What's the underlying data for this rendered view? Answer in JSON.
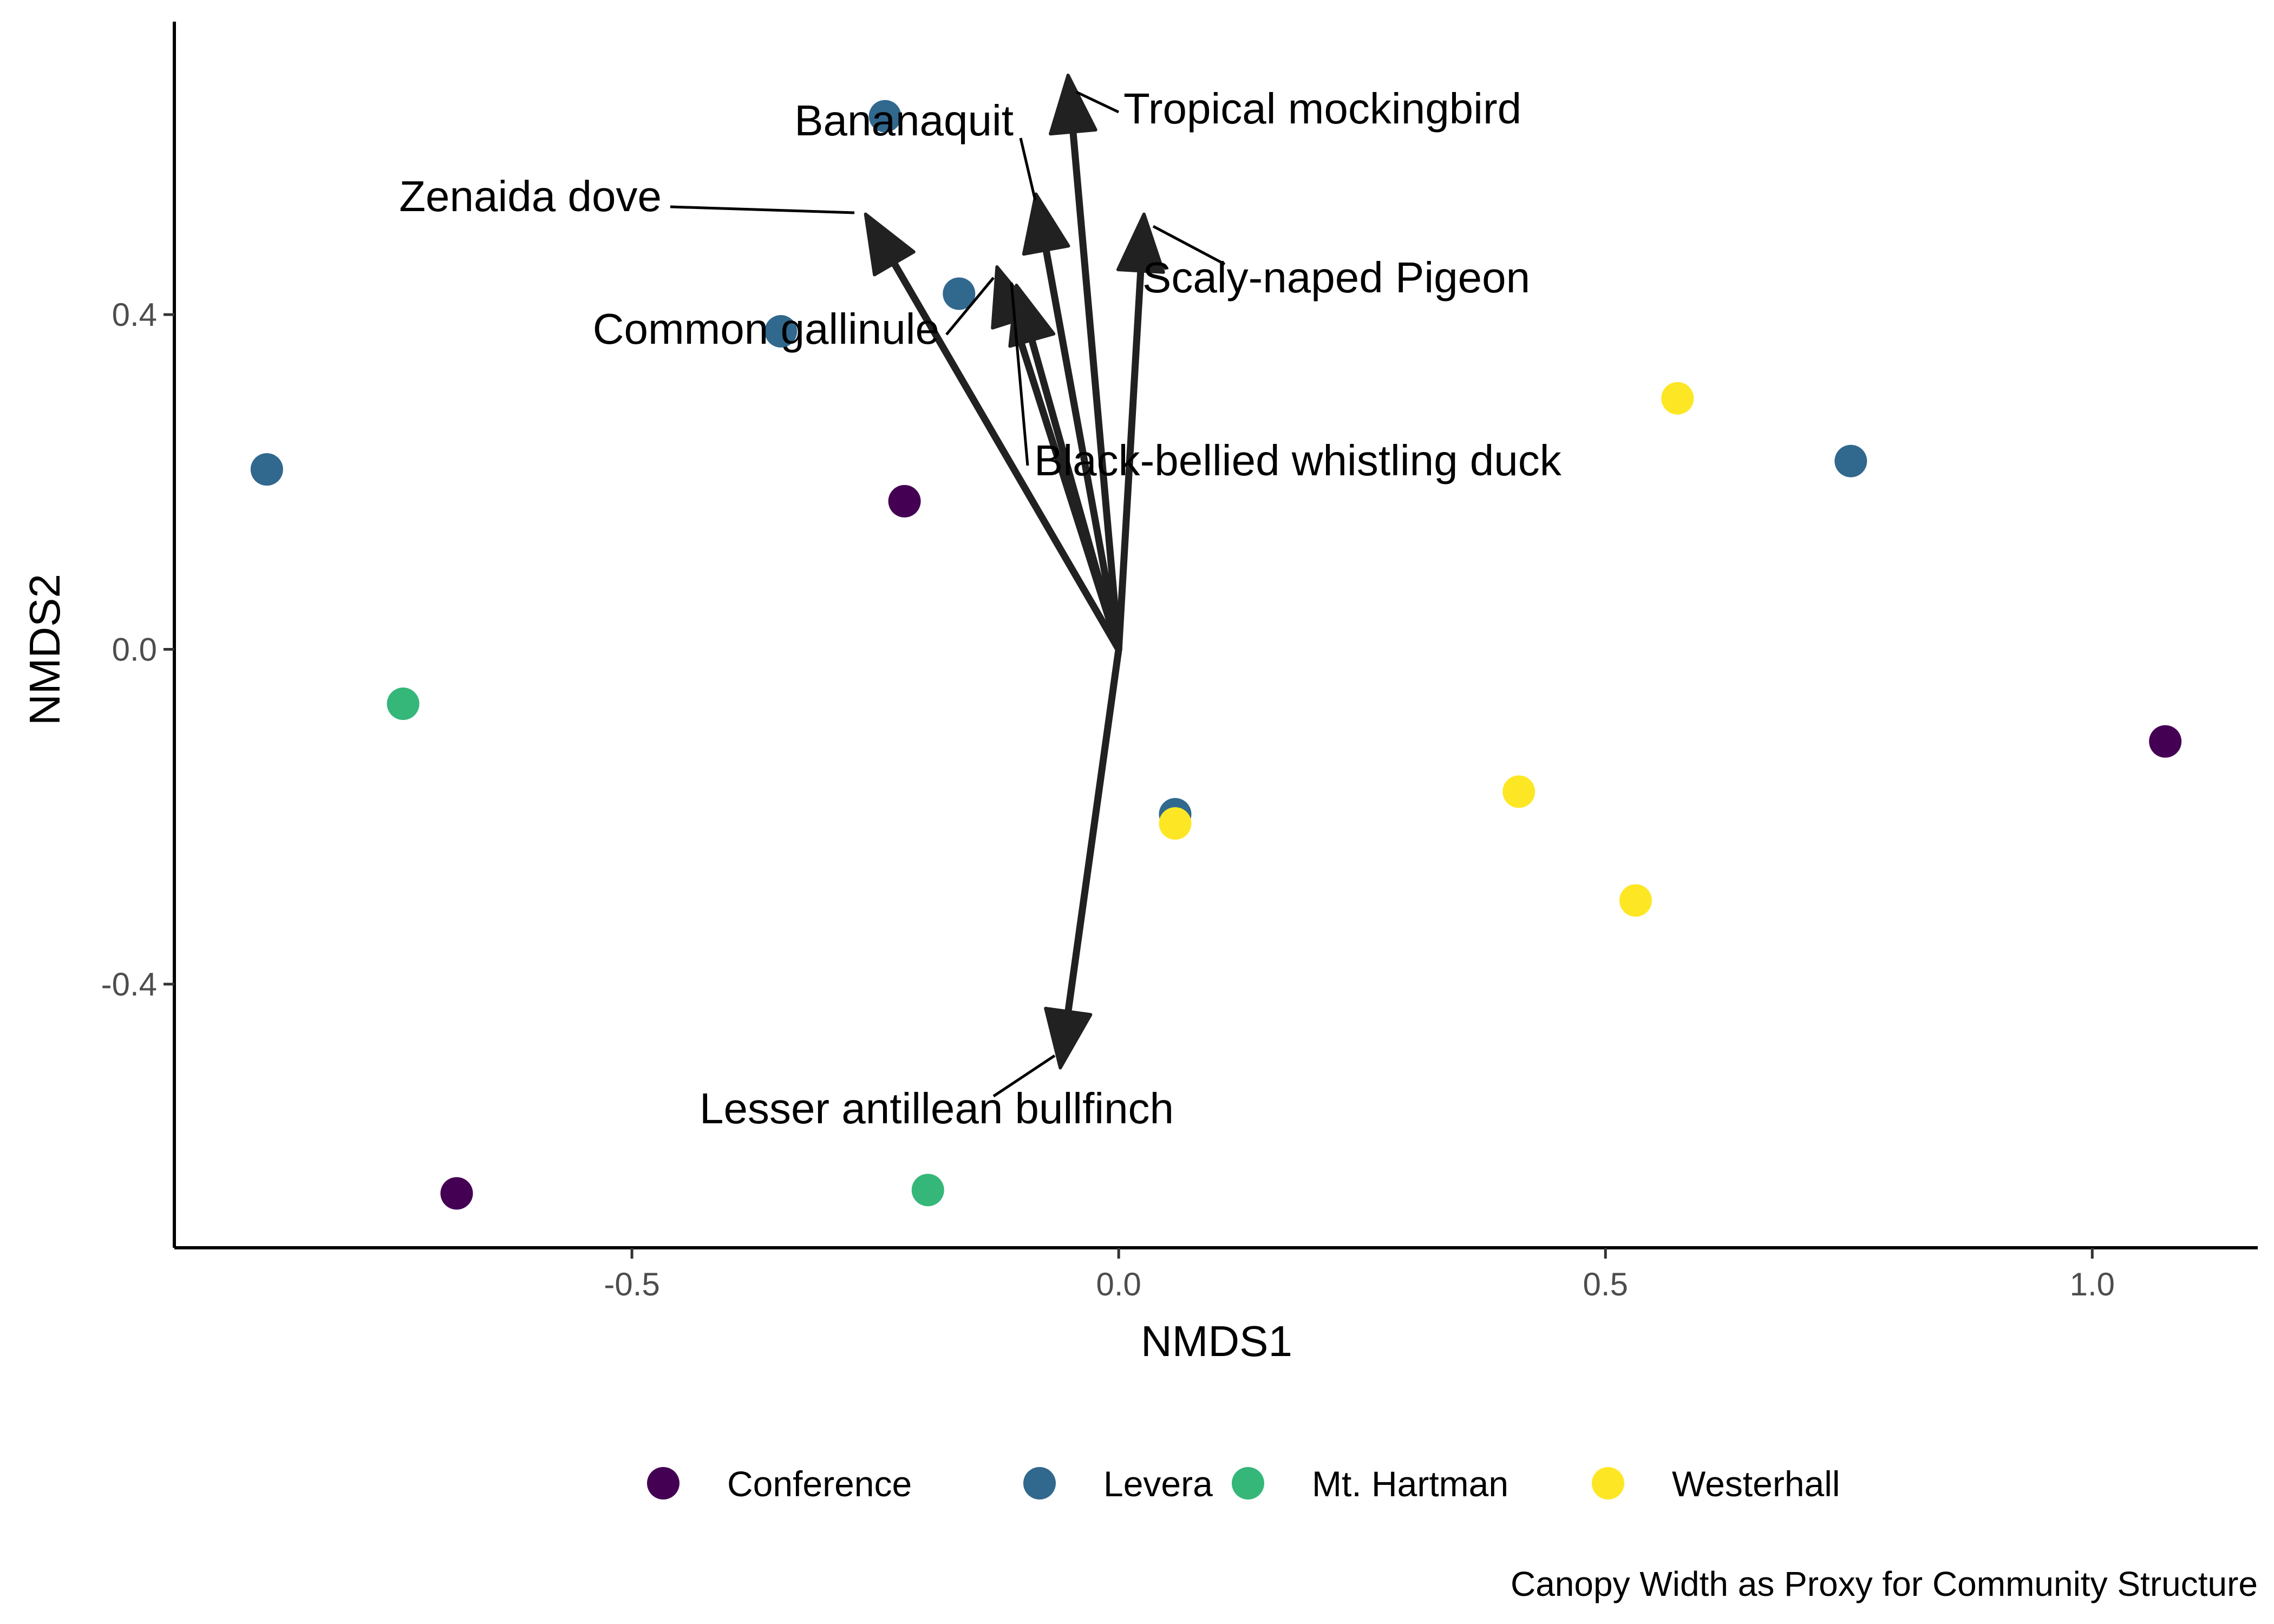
{
  "chart_data": {
    "type": "scatter",
    "caption": "Canopy Width as Proxy for Community Structure",
    "xlabel": "NMDS1",
    "ylabel": "NMDS2",
    "xlim": [
      -0.97,
      1.17
    ],
    "ylim": [
      -0.715,
      0.75
    ],
    "x_ticks": [
      -0.5,
      0.0,
      0.5,
      1.0
    ],
    "x_tick_labels": [
      "-0.5",
      "0.0",
      "0.5",
      "1.0"
    ],
    "y_ticks": [
      -0.4,
      0.0,
      0.4
    ],
    "y_tick_labels": [
      "-0.4",
      "0.0",
      "0.4"
    ],
    "grid": false,
    "legend_position": "bottom",
    "legend": [
      {
        "label": "Conference",
        "color": "#440154"
      },
      {
        "label": "Levera",
        "color": "#31688E"
      },
      {
        "label": "Mt. Hartman",
        "color": "#35B779"
      },
      {
        "label": "Westerhall",
        "color": "#FDE725"
      }
    ],
    "series": [
      {
        "name": "Conference",
        "color": "#440154",
        "points": [
          {
            "x": -0.22,
            "y": 0.177
          },
          {
            "x": -0.68,
            "y": -0.65
          },
          {
            "x": 1.075,
            "y": -0.11
          }
        ]
      },
      {
        "name": "Levera",
        "color": "#31688E",
        "points": [
          {
            "x": -0.24,
            "y": 0.637
          },
          {
            "x": -0.164,
            "y": 0.425
          },
          {
            "x": -0.347,
            "y": 0.38
          },
          {
            "x": -0.875,
            "y": 0.215
          },
          {
            "x": 0.752,
            "y": 0.225
          },
          {
            "x": 0.058,
            "y": -0.197
          }
        ]
      },
      {
        "name": "Mt. Hartman",
        "color": "#35B779",
        "points": [
          {
            "x": -0.735,
            "y": -0.065
          },
          {
            "x": -0.196,
            "y": -0.646
          }
        ]
      },
      {
        "name": "Westerhall",
        "color": "#FDE725",
        "points": [
          {
            "x": 0.574,
            "y": 0.3
          },
          {
            "x": 0.411,
            "y": -0.17
          },
          {
            "x": 0.531,
            "y": -0.3
          },
          {
            "x": 0.058,
            "y": -0.208
          }
        ]
      }
    ],
    "vectors": [
      {
        "label": "Tropical mockingbird",
        "x": -0.052,
        "y": 0.686
      },
      {
        "label": "Bananaquit",
        "x": -0.085,
        "y": 0.544
      },
      {
        "label": "Zenaida dove",
        "x": -0.26,
        "y": 0.52
      },
      {
        "label": "Scaly-naped Pigeon",
        "x": 0.026,
        "y": 0.52
      },
      {
        "label": "Common gallinule",
        "x": -0.125,
        "y": 0.457
      },
      {
        "label": "Black-bellied whistling duck",
        "x": -0.105,
        "y": 0.435
      },
      {
        "label": "Lesser antillean bullfinch",
        "x": -0.06,
        "y": -0.5
      }
    ]
  }
}
